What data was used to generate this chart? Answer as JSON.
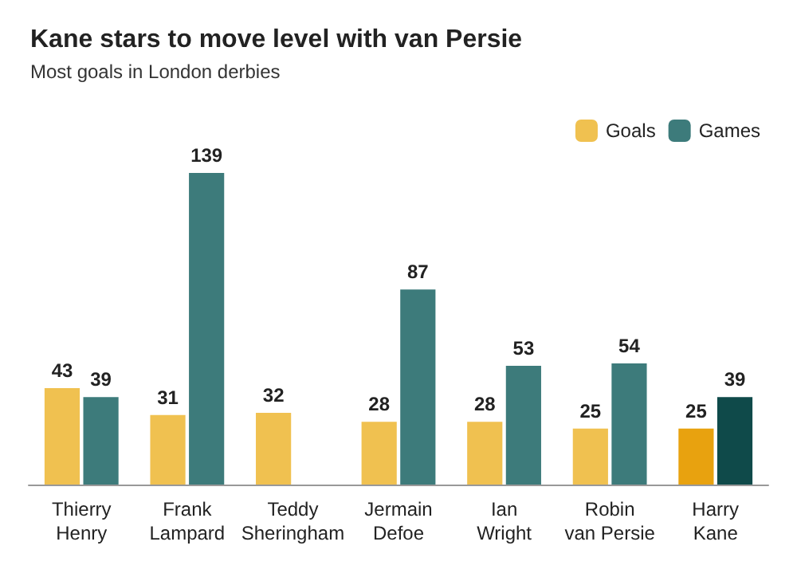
{
  "chart_data": {
    "type": "bar",
    "title": "Kane stars to move level with van Persie",
    "subtitle": "Most goals in London derbies",
    "categories": [
      "Thierry\nHenry",
      "Frank\nLampard",
      "Teddy\nSheringham",
      "Jermain\nDefoe",
      "Ian\nWright",
      "Robin\nvan Persie",
      "Harry\nKane"
    ],
    "series": [
      {
        "name": "Goals",
        "color": "#f0c150",
        "colors": [
          "#f0c150",
          "#f0c150",
          "#f0c150",
          "#f0c150",
          "#f0c150",
          "#f0c150",
          "#e8a20f"
        ],
        "values": [
          43,
          31,
          32,
          28,
          28,
          25,
          25
        ]
      },
      {
        "name": "Games",
        "color": "#3d7b7b",
        "colors": [
          "#3d7b7b",
          "#3d7b7b",
          "#3d7b7b",
          "#3d7b7b",
          "#3d7b7b",
          "#3d7b7b",
          "#0f4a4a"
        ],
        "values": [
          39,
          139,
          null,
          87,
          53,
          54,
          39
        ]
      }
    ],
    "data_labels": true,
    "legend": "top right"
  }
}
